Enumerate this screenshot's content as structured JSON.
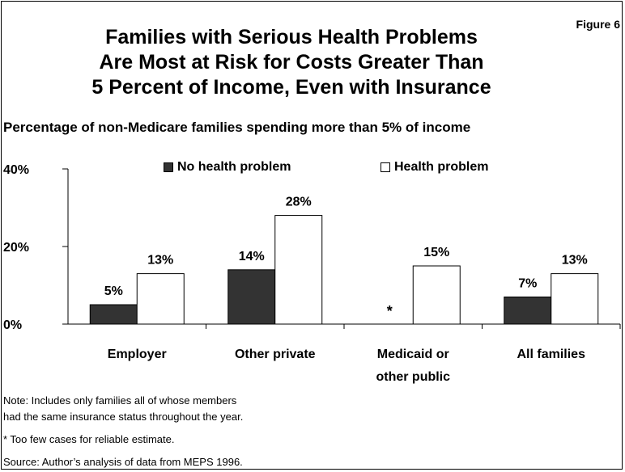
{
  "figure_label": "Figure 6",
  "title_lines": [
    "Families with Serious Health Problems",
    "Are Most at Risk for Costs Greater Than",
    "5 Percent of Income, Even with Insurance"
  ],
  "chart_data": {
    "type": "bar",
    "title": "Families with Serious Health Problems Are Most at Risk for Costs Greater Than 5 Percent of Income, Even with Insurance",
    "subtitle": "Percentage of non-Medicare families spending more than 5% of income",
    "categories": [
      "Employer",
      "Other private",
      "Medicaid or other public",
      "All families"
    ],
    "category_lines": [
      [
        "Employer"
      ],
      [
        "Other private"
      ],
      [
        "Medicaid or",
        "other public"
      ],
      [
        "All families"
      ]
    ],
    "series": [
      {
        "name": "No health problem",
        "values": [
          5,
          14,
          null,
          7
        ],
        "labels": [
          "5%",
          "14%",
          "*",
          "7%"
        ],
        "color": "#333333"
      },
      {
        "name": "Health problem",
        "values": [
          13,
          28,
          15,
          13
        ],
        "labels": [
          "13%",
          "28%",
          "15%",
          "13%"
        ],
        "color": "#ffffff"
      }
    ],
    "y_ticks": [
      0,
      20,
      40
    ],
    "y_tick_labels": [
      "0%",
      "20%",
      "40%"
    ],
    "ylim": [
      0,
      40
    ],
    "grid": false,
    "legend_position": "top"
  },
  "notes": {
    "note_line1": "Note: Includes only families all of whose members",
    "note_line2": "had the same insurance status throughout the year.",
    "asterisk": "* Too few cases for reliable estimate.",
    "source": "Source: Author’s analysis of data from MEPS 1996."
  }
}
